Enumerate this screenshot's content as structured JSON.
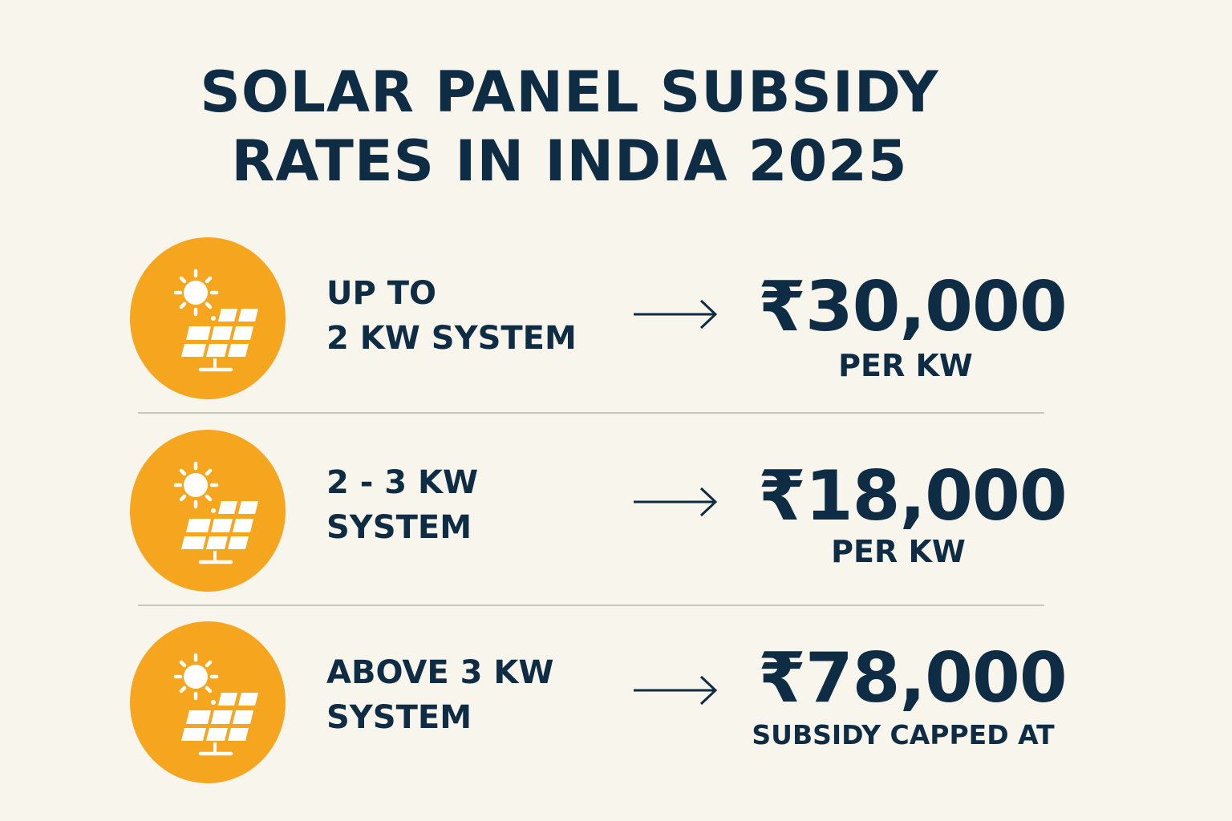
{
  "title": {
    "line1": "SOLAR PANEL SUBSIDY",
    "line2": "RATES IN INDIA 2025"
  },
  "colors": {
    "accent": "#f5a61e",
    "text": "#0f2c45",
    "background": "#f8f5ec"
  },
  "rows": [
    {
      "icon": "solar-panel-sun-icon",
      "label_line1": "UP TO",
      "label_line2": "2 KW SYSTEM",
      "amount": "₹30,000",
      "note": "PER KW"
    },
    {
      "icon": "solar-panel-sun-icon",
      "label_line1": "2 - 3 KW",
      "label_line2": "SYSTEM",
      "amount": "₹18,000",
      "note": "PER KW"
    },
    {
      "icon": "solar-panel-sun-icon",
      "label_line1": "ABOVE 3 KW",
      "label_line2": "SYSTEM",
      "amount": "₹78,000",
      "note": "SUBSIDY CAPPED AT"
    }
  ]
}
